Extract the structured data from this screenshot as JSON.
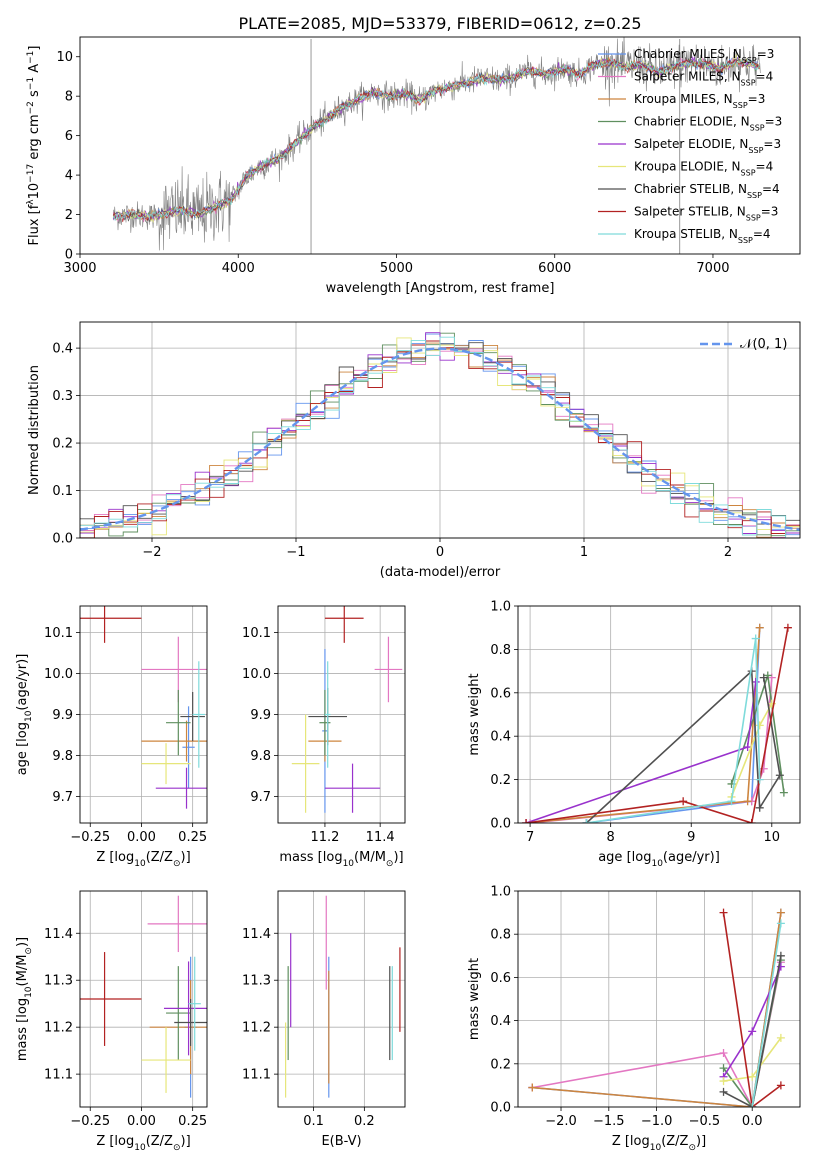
{
  "figure": {
    "title": "PLATE=2085, MJD=53379, FIBERID=0612, z=0.25"
  },
  "colors": {
    "series": [
      "#6495ED",
      "#E377C2",
      "#CD853F",
      "#5F8F5F",
      "#9932CC",
      "#E6E67A",
      "#505050",
      "#B22222",
      "#7FDBDB"
    ],
    "data": "#808080",
    "grid": "#b0b0b0",
    "gaussian": "#6495ED"
  },
  "series_names": [
    "Chabrier MILES, N_SSP=3",
    "Salpeter MILES, N_SSP=4",
    "Kroupa MILES, N_SSP=3",
    "Chabrier ELODIE, N_SSP=3",
    "Salpeter ELODIE, N_SSP=3",
    "Kroupa ELODIE, N_SSP=4",
    "Chabrier STELIB, N_SSP=4",
    "Salpeter STELIB, N_SSP=3",
    "Kroupa STELIB, N_SSP=4"
  ],
  "legend1": [
    {
      "name": "Chabrier MILES, N",
      "sub": "SSP",
      "val": "=3"
    },
    {
      "name": "Salpeter MILES, N",
      "sub": "SSP",
      "val": "=4"
    },
    {
      "name": "Kroupa MILES, N",
      "sub": "SSP",
      "val": "=3"
    },
    {
      "name": "Chabrier ELODIE, N",
      "sub": "SSP",
      "val": "=3"
    },
    {
      "name": "Salpeter ELODIE, N",
      "sub": "SSP",
      "val": "=3"
    },
    {
      "name": "Kroupa ELODIE, N",
      "sub": "SSP",
      "val": "=4"
    },
    {
      "name": "Chabrier STELIB, N",
      "sub": "SSP",
      "val": "=4"
    },
    {
      "name": "Salpeter STELIB, N",
      "sub": "SSP",
      "val": "=3"
    },
    {
      "name": "Kroupa STELIB, N",
      "sub": "SSP",
      "val": "=4"
    }
  ],
  "chart_data": [
    {
      "id": "spectrum",
      "type": "line",
      "xlabel": "wavelength [Angstrom, rest frame]",
      "ylabel_parts": [
        "Flux [f",
        "λ",
        "10",
        "−17",
        " erg cm",
        "−2",
        " s",
        "−1",
        " A",
        "−1",
        "]"
      ],
      "xlim": [
        3000,
        7550
      ],
      "ylim": [
        0,
        11
      ],
      "xticks": [
        3000,
        4000,
        5000,
        6000,
        7000
      ],
      "yticks": [
        0,
        2,
        4,
        6,
        8,
        10
      ],
      "data_range": [
        3210,
        7300
      ],
      "spikes": [
        {
          "x": 4460,
          "y": 10.9
        },
        {
          "x": 6790,
          "y": 10.9
        }
      ],
      "model_curve": [
        [
          3210,
          1.9
        ],
        [
          3300,
          2.0
        ],
        [
          3450,
          1.9
        ],
        [
          3550,
          2.1
        ],
        [
          3650,
          2.2
        ],
        [
          3750,
          2.0
        ],
        [
          3850,
          2.4
        ],
        [
          3950,
          2.7
        ],
        [
          4050,
          3.9
        ],
        [
          4150,
          4.5
        ],
        [
          4250,
          4.8
        ],
        [
          4350,
          5.5
        ],
        [
          4450,
          6.3
        ],
        [
          4550,
          6.8
        ],
        [
          4650,
          7.4
        ],
        [
          4750,
          7.8
        ],
        [
          4850,
          8.2
        ],
        [
          4950,
          8.0
        ],
        [
          5050,
          8.1
        ],
        [
          5150,
          7.8
        ],
        [
          5250,
          8.3
        ],
        [
          5350,
          8.5
        ],
        [
          5450,
          8.7
        ],
        [
          5550,
          8.9
        ],
        [
          5650,
          8.8
        ],
        [
          5750,
          9.0
        ],
        [
          5850,
          9.3
        ],
        [
          5950,
          9.1
        ],
        [
          6050,
          9.4
        ],
        [
          6150,
          9.1
        ],
        [
          6250,
          9.6
        ],
        [
          6350,
          9.7
        ],
        [
          6450,
          9.5
        ],
        [
          6550,
          9.6
        ],
        [
          6650,
          9.2
        ],
        [
          6750,
          9.5
        ],
        [
          6850,
          9.7
        ],
        [
          6950,
          9.6
        ],
        [
          7050,
          9.4
        ],
        [
          7150,
          9.8
        ],
        [
          7300,
          9.5
        ]
      ]
    },
    {
      "id": "residuals",
      "type": "histogram",
      "xlabel": "(data-model)/error",
      "ylabel": "Normed distribution",
      "xlim": [
        -2.5,
        2.5
      ],
      "ylim": [
        0,
        0.455
      ],
      "xticks": [
        -2,
        -1,
        0,
        1,
        2
      ],
      "xtick_labels": [
        "−2",
        "−1",
        "0",
        "1",
        "2"
      ],
      "yticks": [
        0.0,
        0.1,
        0.2,
        0.3,
        0.4
      ],
      "ytick_labels": [
        "0.0",
        "0.1",
        "0.2",
        "0.3",
        "0.4"
      ],
      "bin_width": 0.1,
      "reference_label": "𝒩(0, 1)"
    },
    {
      "id": "age-vs-Z",
      "type": "scatter",
      "xlabel_parts": [
        "Z [log",
        "10",
        "(Z/Z",
        "⊙",
        ")]"
      ],
      "ylabel_parts": [
        "age  [log",
        "10",
        "(age/yr)]"
      ],
      "xlim": [
        -0.3,
        0.32
      ],
      "ylim": [
        9.635,
        10.165
      ],
      "xticks": [
        -0.25,
        0.0,
        0.25
      ],
      "xtick_labels": [
        "−0.25",
        "0.00",
        "0.25"
      ],
      "yticks": [
        9.7,
        9.8,
        9.9,
        10.0,
        10.1
      ],
      "ytick_labels": [
        "9.7",
        "9.8",
        "9.9",
        "10.0",
        "10.1"
      ],
      "points": [
        {
          "series": 0,
          "x": 0.23,
          "xerr": 0.03,
          "y": 9.82,
          "yerr": 0.1
        },
        {
          "series": 1,
          "x": 0.18,
          "xerr": 0.18,
          "y": 10.01,
          "yerr": 0.08
        },
        {
          "series": 2,
          "x": 0.22,
          "xerr": 0.22,
          "y": 9.835,
          "yerr": 0.05
        },
        {
          "series": 3,
          "x": 0.18,
          "xerr": 0.06,
          "y": 9.88,
          "yerr": 0.08
        },
        {
          "series": 4,
          "x": 0.22,
          "xerr": 0.15,
          "y": 9.72,
          "yerr": 0.05
        },
        {
          "series": 5,
          "x": 0.12,
          "xerr": 0.12,
          "y": 9.78,
          "yerr": 0.05
        },
        {
          "series": 6,
          "x": 0.25,
          "xerr": 0.06,
          "y": 9.895,
          "yerr": 0.06
        },
        {
          "series": 7,
          "x": -0.18,
          "xerr": 0.18,
          "y": 10.135,
          "yerr": 0.06
        },
        {
          "series": 8,
          "x": 0.28,
          "xerr": 0.03,
          "y": 9.9,
          "yerr": 0.13
        }
      ]
    },
    {
      "id": "age-vs-mass",
      "type": "scatter",
      "xlabel_parts": [
        "mass [log",
        "10",
        "(M/M",
        "⊙",
        ")]"
      ],
      "xlim": [
        11.03,
        11.49
      ],
      "ylim": [
        9.635,
        10.165
      ],
      "xticks": [
        11.2,
        11.4
      ],
      "xtick_labels": [
        "11.2",
        "11.4"
      ],
      "yticks": [
        9.7,
        9.8,
        9.9,
        10.0,
        10.1
      ],
      "ytick_labels": [
        "9.7",
        "9.8",
        "9.9",
        "10.0",
        "10.1"
      ],
      "points": [
        {
          "series": 0,
          "x": 11.2,
          "xerr": 0.01,
          "y": 9.86,
          "yerr": 0.2
        },
        {
          "series": 1,
          "x": 11.43,
          "xerr": 0.05,
          "y": 10.01,
          "yerr": 0.08
        },
        {
          "series": 2,
          "x": 11.2,
          "xerr": 0.06,
          "y": 9.835,
          "yerr": 0.05
        },
        {
          "series": 3,
          "x": 11.2,
          "xerr": 0.02,
          "y": 9.88,
          "yerr": 0.08
        },
        {
          "series": 4,
          "x": 11.3,
          "xerr": 0.1,
          "y": 9.72,
          "yerr": 0.06
        },
        {
          "series": 5,
          "x": 11.13,
          "xerr": 0.05,
          "y": 9.78,
          "yerr": 0.12
        },
        {
          "series": 6,
          "x": 11.21,
          "xerr": 0.07,
          "y": 9.895,
          "yerr": 0.07
        },
        {
          "series": 7,
          "x": 11.27,
          "xerr": 0.07,
          "y": 10.135,
          "yerr": 0.06
        },
        {
          "series": 8,
          "x": 11.21,
          "xerr": 0.01,
          "y": 9.9,
          "yerr": 0.13
        }
      ]
    },
    {
      "id": "mass-weight-vs-age",
      "type": "line",
      "xlabel_parts": [
        "age  [log",
        "10",
        "(age/yr)]"
      ],
      "ylabel": "mass weight",
      "xlim": [
        6.85,
        10.35
      ],
      "ylim": [
        0,
        1
      ],
      "xticks": [
        7,
        8,
        9,
        10
      ],
      "xtick_labels": [
        "7",
        "8",
        "9",
        "10"
      ],
      "yticks": [
        0.0,
        0.2,
        0.4,
        0.6,
        0.8,
        1.0
      ],
      "ytick_labels": [
        "0.0",
        "0.2",
        "0.4",
        "0.6",
        "0.8",
        "1.0"
      ],
      "series": [
        {
          "series": 0,
          "x": [
            7.7,
            9.75,
            9.85
          ],
          "y": [
            0.0,
            0.1,
            0.9
          ]
        },
        {
          "series": 1,
          "x": [
            7.0,
            9.75,
            9.9,
            10.0
          ],
          "y": [
            0.0,
            0.1,
            0.25,
            0.67
          ]
        },
        {
          "series": 2,
          "x": [
            6.95,
            9.7,
            9.85
          ],
          "y": [
            0.0,
            0.1,
            0.9
          ]
        },
        {
          "series": 3,
          "x": [
            9.5,
            9.95,
            10.15
          ],
          "y": [
            0.18,
            0.68,
            0.14
          ]
        },
        {
          "series": 4,
          "x": [
            6.95,
            9.7,
            9.8
          ],
          "y": [
            0.0,
            0.35,
            0.65
          ]
        },
        {
          "series": 5,
          "x": [
            9.5,
            9.85,
            10.0
          ],
          "y": [
            0.12,
            0.45,
            0.55
          ]
        },
        {
          "series": 6,
          "x": [
            7.7,
            9.75,
            9.85,
            10.1,
            9.9
          ],
          "y": [
            0.0,
            0.7,
            0.07,
            0.22,
            0.67
          ]
        },
        {
          "series": 7,
          "x": [
            6.95,
            8.9,
            9.75,
            10.2
          ],
          "y": [
            0.0,
            0.1,
            0.0,
            0.9
          ]
        },
        {
          "series": 8,
          "x": [
            7.7,
            9.5,
            9.8,
            9.85
          ],
          "y": [
            0.0,
            0.1,
            0.85,
            0.2
          ]
        }
      ]
    },
    {
      "id": "mass-vs-Z",
      "type": "scatter",
      "xlabel_parts": [
        "Z [log",
        "10",
        "(Z/Z",
        "⊙",
        ")]"
      ],
      "ylabel_parts": [
        "mass [log",
        "10",
        "(M/M",
        "⊙",
        ")]"
      ],
      "xlim": [
        -0.3,
        0.32
      ],
      "ylim": [
        11.03,
        11.49
      ],
      "xticks": [
        -0.25,
        0.0,
        0.25
      ],
      "xtick_labels": [
        "−0.25",
        "0.00",
        "0.25"
      ],
      "yticks": [
        11.1,
        11.2,
        11.3,
        11.4
      ],
      "ytick_labels": [
        "11.1",
        "11.2",
        "11.3",
        "11.4"
      ],
      "points": [
        {
          "series": 0,
          "x": 0.24,
          "xerr": 0.03,
          "y": 11.2,
          "yerr": 0.15
        },
        {
          "series": 1,
          "x": 0.18,
          "xerr": 0.15,
          "y": 11.42,
          "yerr": 0.06
        },
        {
          "series": 2,
          "x": 0.24,
          "xerr": 0.2,
          "y": 11.2,
          "yerr": 0.1
        },
        {
          "series": 3,
          "x": 0.18,
          "xerr": 0.06,
          "y": 11.23,
          "yerr": 0.1
        },
        {
          "series": 4,
          "x": 0.23,
          "xerr": 0.12,
          "y": 11.24,
          "yerr": 0.1
        },
        {
          "series": 5,
          "x": 0.12,
          "xerr": 0.12,
          "y": 11.13,
          "yerr": 0.07
        },
        {
          "series": 6,
          "x": 0.24,
          "xerr": 0.08,
          "y": 11.21,
          "yerr": 0.05
        },
        {
          "series": 7,
          "x": -0.18,
          "xerr": 0.18,
          "y": 11.26,
          "yerr": 0.1
        },
        {
          "series": 8,
          "x": 0.26,
          "xerr": 0.03,
          "y": 11.25,
          "yerr": 0.1
        }
      ]
    },
    {
      "id": "mass-vs-EBV",
      "type": "scatter",
      "xlabel": "E(B-V)",
      "xlim": [
        0.03,
        0.28
      ],
      "ylim": [
        11.03,
        11.49
      ],
      "xticks": [
        0.1,
        0.2
      ],
      "xtick_labels": [
        "0.1",
        "0.2"
      ],
      "yticks": [
        11.1,
        11.2,
        11.3,
        11.4
      ],
      "ytick_labels": [
        "11.1",
        "11.2",
        "11.3",
        "11.4"
      ],
      "points": [
        {
          "series": 0,
          "x": 0.13,
          "yerr": 0.15,
          "y": 11.2
        },
        {
          "series": 1,
          "x": 0.125,
          "yerr": 0.1,
          "y": 11.38
        },
        {
          "series": 2,
          "x": 0.13,
          "yerr": 0.12,
          "y": 11.2
        },
        {
          "series": 3,
          "x": 0.05,
          "yerr": 0.1,
          "y": 11.23
        },
        {
          "series": 4,
          "x": 0.055,
          "yerr": 0.1,
          "y": 11.3
        },
        {
          "series": 5,
          "x": 0.045,
          "yerr": 0.08,
          "y": 11.13
        },
        {
          "series": 6,
          "x": 0.25,
          "yerr": 0.1,
          "y": 11.23
        },
        {
          "series": 7,
          "x": 0.27,
          "yerr": 0.09,
          "y": 11.28
        },
        {
          "series": 8,
          "x": 0.255,
          "yerr": 0.1,
          "y": 11.23
        }
      ]
    },
    {
      "id": "mass-weight-vs-Z",
      "type": "line",
      "xlabel_parts": [
        "Z [log",
        "10",
        "(Z/Z",
        "⊙",
        ")]"
      ],
      "ylabel": "mass weight",
      "xlim": [
        -2.45,
        0.5
      ],
      "ylim": [
        0,
        1
      ],
      "xticks": [
        -2.0,
        -1.5,
        -1.0,
        -0.5,
        0.0
      ],
      "xtick_labels": [
        "−2.0",
        "−1.5",
        "−1.0",
        "−0.5",
        "0.0"
      ],
      "yticks": [
        0.0,
        0.2,
        0.4,
        0.6,
        0.8,
        1.0
      ],
      "ytick_labels": [
        "0.0",
        "0.2",
        "0.4",
        "0.6",
        "0.8",
        "1.0"
      ],
      "series": [
        {
          "series": 0,
          "x": [
            -2.3,
            0.0,
            0.3
          ],
          "y": [
            0.09,
            0.0,
            0.9
          ]
        },
        {
          "series": 1,
          "x": [
            -2.3,
            -0.3,
            0.0,
            0.3
          ],
          "y": [
            0.09,
            0.25,
            0.0,
            0.67
          ]
        },
        {
          "series": 2,
          "x": [
            -2.3,
            0.0,
            0.3
          ],
          "y": [
            0.09,
            0.0,
            0.9
          ]
        },
        {
          "series": 3,
          "x": [
            -0.3,
            0.0,
            0.3
          ],
          "y": [
            0.18,
            0.0,
            0.68
          ]
        },
        {
          "series": 4,
          "x": [
            -0.3,
            0.0,
            0.3
          ],
          "y": [
            0.14,
            0.35,
            0.65
          ]
        },
        {
          "series": 5,
          "x": [
            -0.3,
            0.0,
            0.3
          ],
          "y": [
            0.12,
            0.14,
            0.32
          ]
        },
        {
          "series": 6,
          "x": [
            -0.3,
            0.0,
            0.3
          ],
          "y": [
            0.07,
            0.0,
            0.7
          ]
        },
        {
          "series": 7,
          "x": [
            -0.3,
            0.0,
            0.3
          ],
          "y": [
            0.9,
            0.0,
            0.1
          ]
        },
        {
          "series": 8,
          "x": [
            0.0,
            0.3
          ],
          "y": [
            0.0,
            0.85
          ]
        }
      ]
    }
  ]
}
